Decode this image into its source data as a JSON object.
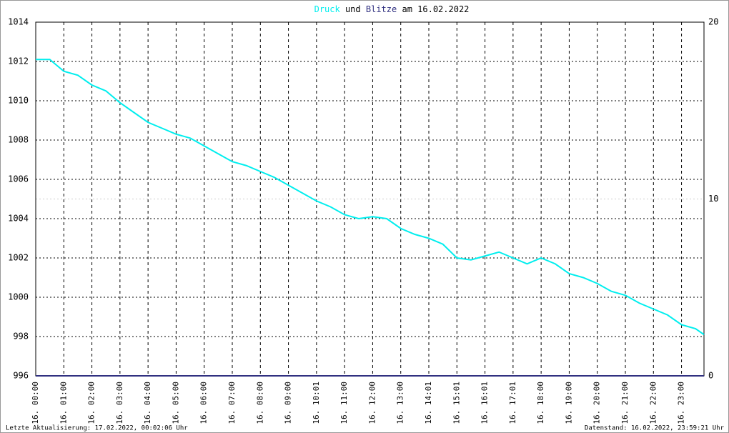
{
  "chart_data": {
    "type": "line",
    "title_connector": "und",
    "title_suffix": "am 16.02.2022",
    "xlim": [
      0,
      23.8
    ],
    "xticks": [
      {
        "value": 0,
        "label": "16. 00:00"
      },
      {
        "value": 1,
        "label": "16. 01:00"
      },
      {
        "value": 2,
        "label": "16. 02:00"
      },
      {
        "value": 3,
        "label": "16. 03:00"
      },
      {
        "value": 4,
        "label": "16. 04:00"
      },
      {
        "value": 5,
        "label": "16. 05:00"
      },
      {
        "value": 6,
        "label": "16. 06:00"
      },
      {
        "value": 7,
        "label": "16. 07:00"
      },
      {
        "value": 8,
        "label": "16. 08:00"
      },
      {
        "value": 9,
        "label": "16. 09:00"
      },
      {
        "value": 10,
        "label": "16. 10:01"
      },
      {
        "value": 11,
        "label": "16. 11:00"
      },
      {
        "value": 12,
        "label": "16. 12:00"
      },
      {
        "value": 13,
        "label": "16. 13:00"
      },
      {
        "value": 14,
        "label": "16. 14:01"
      },
      {
        "value": 15,
        "label": "16. 15:01"
      },
      {
        "value": 16,
        "label": "16. 16:01"
      },
      {
        "value": 17,
        "label": "16. 17:01"
      },
      {
        "value": 18,
        "label": "16. 18:00"
      },
      {
        "value": 19,
        "label": "16. 19:00"
      },
      {
        "value": 20,
        "label": "16. 20:00"
      },
      {
        "value": 21,
        "label": "16. 21:00"
      },
      {
        "value": 22,
        "label": "16. 22:00"
      },
      {
        "value": 23,
        "label": "16. 23:00"
      }
    ],
    "ylim": [
      996,
      1014
    ],
    "yticks": [
      996,
      998,
      1000,
      1002,
      1004,
      1006,
      1008,
      1010,
      1012,
      1014
    ],
    "y2lim": [
      0,
      20
    ],
    "y2ticks": [
      0,
      10,
      20
    ],
    "grid": true,
    "series": [
      {
        "name": "Druck",
        "color": "#00eeee",
        "x": [
          0,
          0.5,
          1,
          1.5,
          2,
          2.5,
          3,
          3.5,
          4,
          4.5,
          5,
          5.5,
          6,
          6.5,
          7,
          7.5,
          8,
          8.5,
          9,
          9.5,
          10,
          10.5,
          11,
          11.5,
          12,
          12.5,
          13,
          13.5,
          14,
          14.5,
          15,
          15.5,
          16,
          16.5,
          17,
          17.5,
          18,
          18.5,
          19,
          19.5,
          20,
          20.5,
          21,
          21.5,
          22,
          22.5,
          23,
          23.5,
          23.8
        ],
        "values": [
          1012.1,
          1012.1,
          1011.5,
          1011.3,
          1010.8,
          1010.5,
          1009.9,
          1009.4,
          1008.9,
          1008.6,
          1008.3,
          1008.1,
          1007.7,
          1007.3,
          1006.9,
          1006.7,
          1006.4,
          1006.1,
          1005.7,
          1005.3,
          1004.9,
          1004.6,
          1004.2,
          1004.0,
          1004.1,
          1004.0,
          1003.5,
          1003.2,
          1003.0,
          1002.7,
          1002.0,
          1001.9,
          1002.1,
          1002.3,
          1002.0,
          1001.7,
          1002.0,
          1001.7,
          1001.2,
          1001.0,
          1000.7,
          1000.3,
          1000.1,
          999.7,
          999.4,
          999.1,
          998.6,
          998.4,
          998.1
        ]
      },
      {
        "name": "Blitze",
        "color": "#303080",
        "axis": "y2",
        "x": [
          0,
          23.8
        ],
        "values": [
          0,
          0
        ]
      }
    ],
    "footer_left": "Letzte Aktualisierung: 17.02.2022, 00:02:06 Uhr",
    "footer_right": "Datenstand: 16.02.2022, 23:59:21 Uhr"
  }
}
